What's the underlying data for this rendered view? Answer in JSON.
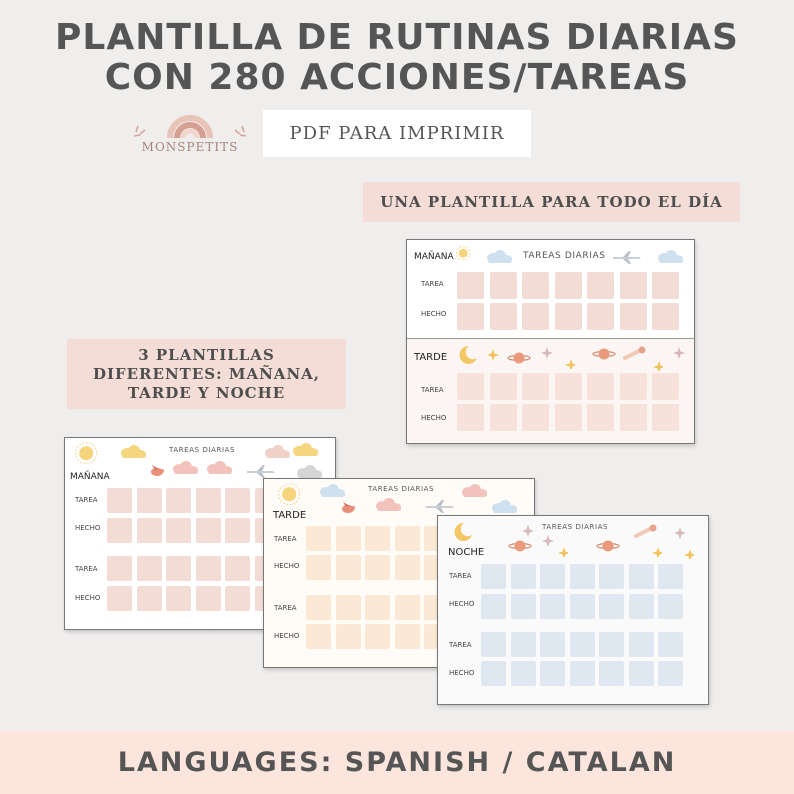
{
  "header": {
    "title_line1": "PLANTILLA DE RUTINAS DIARIAS",
    "title_line2": "CON 280 ACCIONES/TAREAS",
    "pdf_label": "PDF PARA IMPRIMIR"
  },
  "logo": {
    "name": "MONSPETITS"
  },
  "callouts": {
    "all_day": "UNA PLANTILLA PARA TODO EL DÍA",
    "three_templates": [
      "3 PLANTILLAS",
      "DIFERENTES: MAÑANA,",
      "TARDE Y NOCHE"
    ]
  },
  "sheets": {
    "combined": {
      "title": "TAREAS DIARIAS",
      "morning_label": "MAÑANA",
      "afternoon_label": "TARDE",
      "task_label": "TAREA",
      "done_label": "HECHO",
      "cell_color": "#f3dcd6",
      "afternoon_cell_color": "#f6e1db"
    },
    "morning": {
      "title": "TAREAS DIARIAS",
      "label": "MAÑANA",
      "task_label": "TAREA",
      "done_label": "HECHO",
      "cell_color": "#f3dcd6"
    },
    "afternoon": {
      "title": "TAREAS DIARIAS",
      "label": "TARDE",
      "task_label": "TAREA",
      "done_label": "HECHO",
      "cell_color": "#fbe8d5"
    },
    "night": {
      "title": "TAREAS DIARIAS",
      "label": "NOCHE",
      "task_label": "TAREA",
      "done_label": "HECHO",
      "cell_color": "#dfe7f1"
    }
  },
  "icons": [
    "sun-icon",
    "cloud-icon",
    "airplane-icon",
    "moon-icon",
    "planet-icon",
    "star-icon",
    "comet-icon",
    "bird-icon",
    "rainbow-logo-icon"
  ],
  "footer": {
    "languages": "LANGUAGES: SPANISH / CATALAN"
  }
}
